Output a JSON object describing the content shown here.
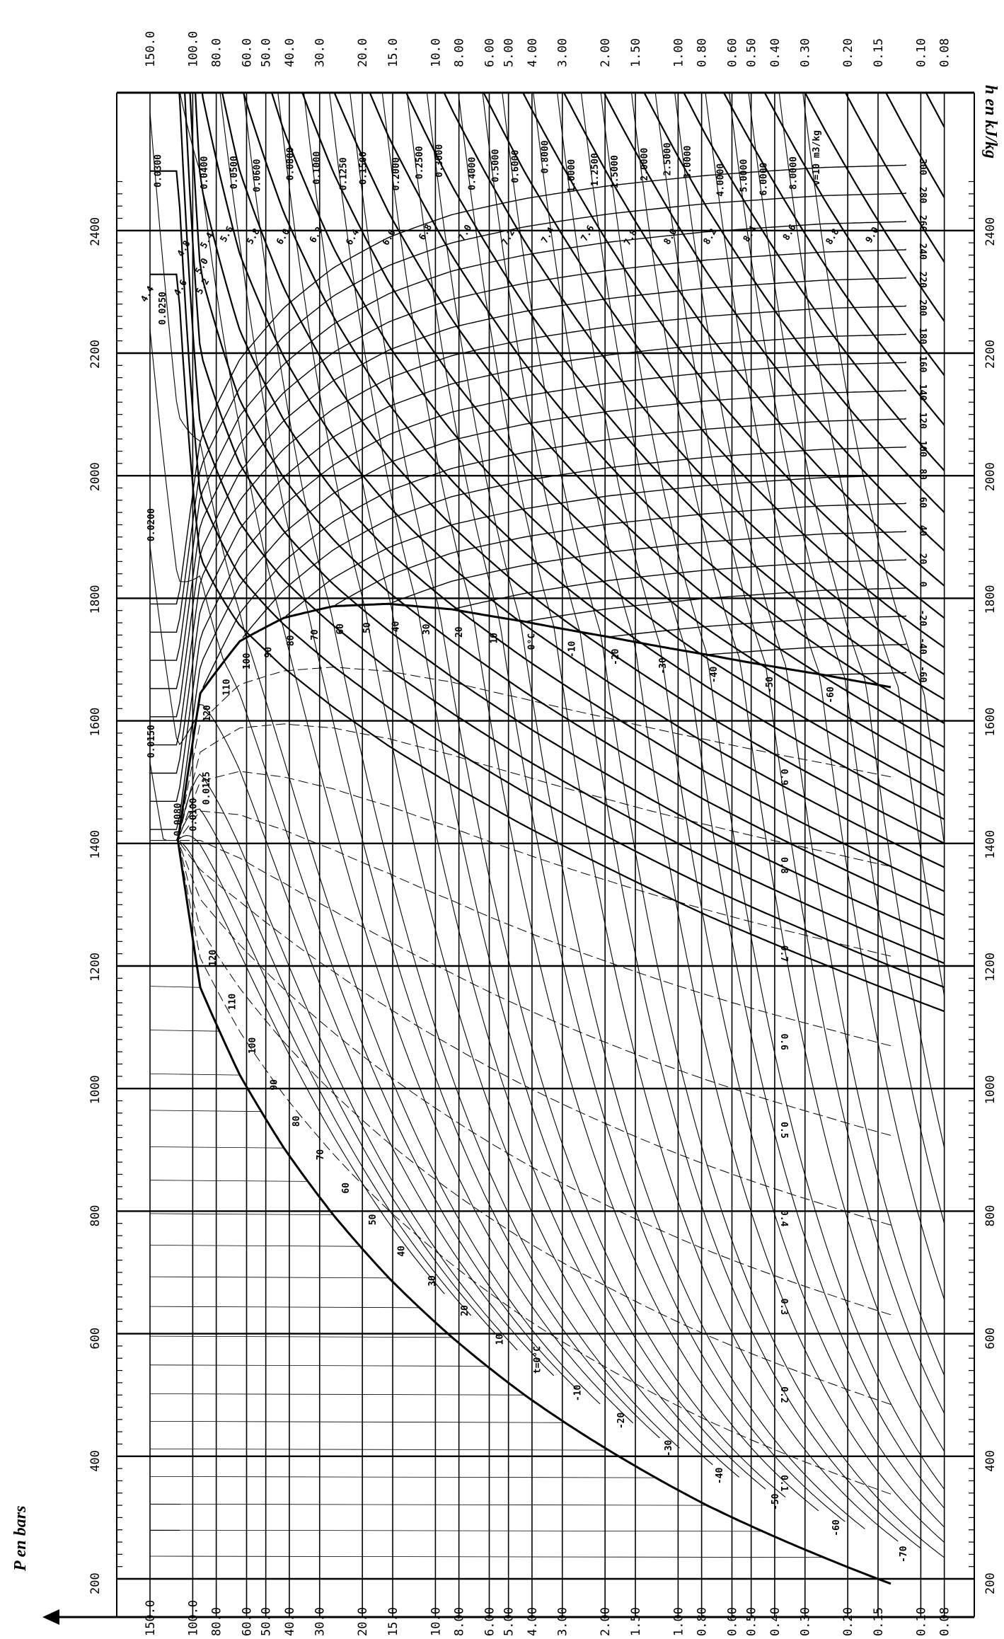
{
  "chart_data": {
    "type": "line",
    "title": "",
    "ylabel": "P en bars",
    "xlabel": "h en kJ/kg",
    "pressure_scale": "log",
    "pressure_range": [
      0.08,
      150
    ],
    "enthalpy_range": [
      200,
      2500
    ],
    "orientation": "rotated 90° counter-clockwise (h vertical, P horizontal)",
    "pressure_ticks": [
      "150.0",
      "100.0",
      "80.0",
      "60.0",
      "50.0",
      "40.0",
      "30.0",
      "20.0",
      "15.0",
      "10.0",
      "8.00",
      "6.00",
      "5.00",
      "4.00",
      "3.00",
      "2.00",
      "1.50",
      "1.00",
      "0.80",
      "0.60",
      "0.50",
      "0.40",
      "0.30",
      "0.20",
      "0.15",
      "0.10",
      "0.08"
    ],
    "enthalpy_ticks": [
      "200",
      "400",
      "600",
      "800",
      "1000",
      "1200",
      "1400",
      "1600",
      "1800",
      "2000",
      "2200",
      "2400"
    ],
    "saturation": {
      "t": [
        -70,
        -60,
        -40,
        -20,
        0,
        20,
        40,
        60,
        80,
        100,
        120,
        132.3
      ],
      "h_liquid": [
        192,
        235,
        320,
        410,
        500,
        594,
        691,
        794,
        903,
        1022,
        1165,
        1405
      ],
      "h_vapor": [
        1655,
        1675,
        1708,
        1737,
        1762,
        1782,
        1791,
        1787,
        1768,
        1730,
        1645,
        1405
      ]
    },
    "saturation_labels": [
      "120",
      "110",
      "100",
      "90",
      "80",
      "70",
      "60",
      "50",
      "40",
      "30",
      "20",
      "10",
      "t=0°C",
      "-10",
      "-20",
      "-30",
      "-40",
      "-50",
      "-60",
      "-70"
    ],
    "quality_lines": [
      0.1,
      0.2,
      0.3,
      0.4,
      0.5,
      0.6,
      0.7,
      0.8,
      0.9
    ],
    "quality_labels": [
      "0.1",
      "0.2",
      "0.3",
      "0.4",
      "0.5",
      "0.6",
      "0.7",
      "0.8",
      "0.9"
    ],
    "superheat_isotherms": [
      "-60",
      "-40",
      "-20",
      "0",
      "20",
      "40",
      "60",
      "80",
      "100",
      "120",
      "140",
      "160",
      "180",
      "200",
      "220",
      "240",
      "260",
      "280",
      "300"
    ],
    "specific_volume_labels": [
      "0.0080",
      "0.0100",
      "0.0125",
      "0.0150",
      "0.0200",
      "0.0250",
      "0.0300",
      "0.0400",
      "0.0500",
      "0.0600",
      "0.0800",
      "0.1000",
      "0.1250",
      "0.1500",
      "0.2000",
      "0.2500",
      "0.3000",
      "0.4000",
      "0.5000",
      "0.6000",
      "0.8000",
      "1.0000",
      "1.2500",
      "1.5000",
      "2.0000",
      "2.5000",
      "3.0000",
      "4.0000",
      "5.0000",
      "6.0000",
      "8.0000",
      "v=10 m3/kg"
    ],
    "specific_volume_values": [
      0.008,
      0.01,
      0.0125,
      0.015,
      0.02,
      0.025,
      0.03,
      0.04,
      0.05,
      0.06,
      0.08,
      0.1,
      0.125,
      0.15,
      0.2,
      0.25,
      0.3,
      0.4,
      0.5,
      0.6,
      0.8,
      1.0,
      1.25,
      1.5,
      2.0,
      2.5,
      3.0,
      4.0,
      5.0,
      6.0,
      8.0,
      10.0
    ],
    "entropy_labels": [
      "4.4",
      "4.6",
      "4.8",
      "5.0",
      "5.2",
      "5.4",
      "5.6",
      "5.8",
      "6.0",
      "6.2",
      "6.4",
      "6.6",
      "6.8",
      "7.0",
      "7.2",
      "7.4",
      "7.6",
      "7.8",
      "8.0",
      "8.2",
      "8.4",
      "8.6",
      "8.8",
      "9.0",
      "9.2",
      "9.4",
      "9.6",
      "9.8",
      "10.0"
    ],
    "grid": true
  }
}
